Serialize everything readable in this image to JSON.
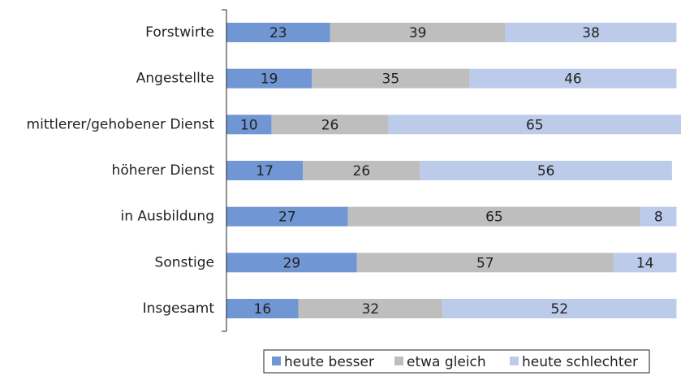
{
  "chart_data": {
    "type": "stacked-bar-horizontal",
    "categories": [
      "Forstwirte",
      "Angestellte",
      "mittlerer/gehobener Dienst",
      "höherer Dienst",
      "in Ausbildung",
      "Sonstige",
      "Insgesamt"
    ],
    "series": [
      {
        "name": "heute besser",
        "color": "#7096d3",
        "values": [
          23,
          19,
          10,
          17,
          27,
          29,
          16
        ]
      },
      {
        "name": "etwa gleich",
        "color": "#bebebe",
        "values": [
          39,
          35,
          26,
          26,
          65,
          57,
          32
        ]
      },
      {
        "name": "heute schlechter",
        "color": "#bdcbea",
        "values": [
          38,
          46,
          65,
          56,
          8,
          14,
          52
        ]
      }
    ],
    "legend": "bottom"
  }
}
